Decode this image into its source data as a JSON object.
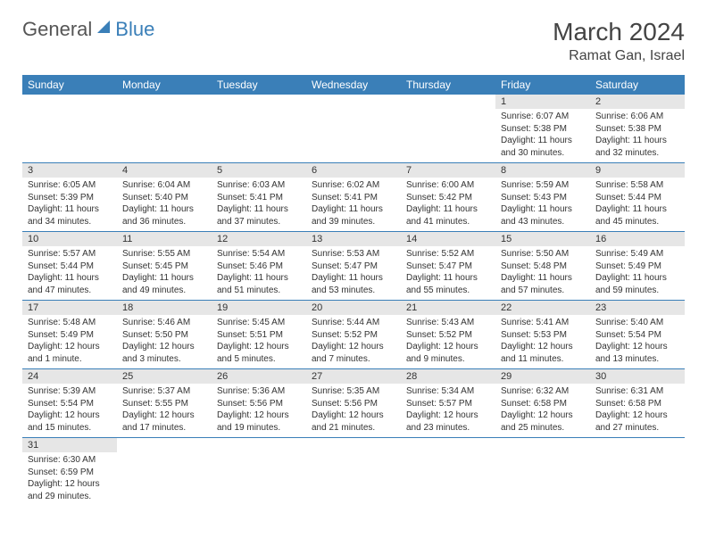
{
  "logo": {
    "general": "General",
    "blue": "Blue"
  },
  "title": "March 2024",
  "location": "Ramat Gan, Israel",
  "colors": {
    "header_bg": "#3a7fb8",
    "header_text": "#ffffff",
    "daynum_bg": "#e6e6e6",
    "body_text": "#333333",
    "border": "#3a7fb8"
  },
  "day_headers": [
    "Sunday",
    "Monday",
    "Tuesday",
    "Wednesday",
    "Thursday",
    "Friday",
    "Saturday"
  ],
  "weeks": [
    [
      null,
      null,
      null,
      null,
      null,
      {
        "n": "1",
        "sr": "6:07 AM",
        "ss": "5:38 PM",
        "dl": "11 hours and 30 minutes."
      },
      {
        "n": "2",
        "sr": "6:06 AM",
        "ss": "5:38 PM",
        "dl": "11 hours and 32 minutes."
      }
    ],
    [
      {
        "n": "3",
        "sr": "6:05 AM",
        "ss": "5:39 PM",
        "dl": "11 hours and 34 minutes."
      },
      {
        "n": "4",
        "sr": "6:04 AM",
        "ss": "5:40 PM",
        "dl": "11 hours and 36 minutes."
      },
      {
        "n": "5",
        "sr": "6:03 AM",
        "ss": "5:41 PM",
        "dl": "11 hours and 37 minutes."
      },
      {
        "n": "6",
        "sr": "6:02 AM",
        "ss": "5:41 PM",
        "dl": "11 hours and 39 minutes."
      },
      {
        "n": "7",
        "sr": "6:00 AM",
        "ss": "5:42 PM",
        "dl": "11 hours and 41 minutes."
      },
      {
        "n": "8",
        "sr": "5:59 AM",
        "ss": "5:43 PM",
        "dl": "11 hours and 43 minutes."
      },
      {
        "n": "9",
        "sr": "5:58 AM",
        "ss": "5:44 PM",
        "dl": "11 hours and 45 minutes."
      }
    ],
    [
      {
        "n": "10",
        "sr": "5:57 AM",
        "ss": "5:44 PM",
        "dl": "11 hours and 47 minutes."
      },
      {
        "n": "11",
        "sr": "5:55 AM",
        "ss": "5:45 PM",
        "dl": "11 hours and 49 minutes."
      },
      {
        "n": "12",
        "sr": "5:54 AM",
        "ss": "5:46 PM",
        "dl": "11 hours and 51 minutes."
      },
      {
        "n": "13",
        "sr": "5:53 AM",
        "ss": "5:47 PM",
        "dl": "11 hours and 53 minutes."
      },
      {
        "n": "14",
        "sr": "5:52 AM",
        "ss": "5:47 PM",
        "dl": "11 hours and 55 minutes."
      },
      {
        "n": "15",
        "sr": "5:50 AM",
        "ss": "5:48 PM",
        "dl": "11 hours and 57 minutes."
      },
      {
        "n": "16",
        "sr": "5:49 AM",
        "ss": "5:49 PM",
        "dl": "11 hours and 59 minutes."
      }
    ],
    [
      {
        "n": "17",
        "sr": "5:48 AM",
        "ss": "5:49 PM",
        "dl": "12 hours and 1 minute."
      },
      {
        "n": "18",
        "sr": "5:46 AM",
        "ss": "5:50 PM",
        "dl": "12 hours and 3 minutes."
      },
      {
        "n": "19",
        "sr": "5:45 AM",
        "ss": "5:51 PM",
        "dl": "12 hours and 5 minutes."
      },
      {
        "n": "20",
        "sr": "5:44 AM",
        "ss": "5:52 PM",
        "dl": "12 hours and 7 minutes."
      },
      {
        "n": "21",
        "sr": "5:43 AM",
        "ss": "5:52 PM",
        "dl": "12 hours and 9 minutes."
      },
      {
        "n": "22",
        "sr": "5:41 AM",
        "ss": "5:53 PM",
        "dl": "12 hours and 11 minutes."
      },
      {
        "n": "23",
        "sr": "5:40 AM",
        "ss": "5:54 PM",
        "dl": "12 hours and 13 minutes."
      }
    ],
    [
      {
        "n": "24",
        "sr": "5:39 AM",
        "ss": "5:54 PM",
        "dl": "12 hours and 15 minutes."
      },
      {
        "n": "25",
        "sr": "5:37 AM",
        "ss": "5:55 PM",
        "dl": "12 hours and 17 minutes."
      },
      {
        "n": "26",
        "sr": "5:36 AM",
        "ss": "5:56 PM",
        "dl": "12 hours and 19 minutes."
      },
      {
        "n": "27",
        "sr": "5:35 AM",
        "ss": "5:56 PM",
        "dl": "12 hours and 21 minutes."
      },
      {
        "n": "28",
        "sr": "5:34 AM",
        "ss": "5:57 PM",
        "dl": "12 hours and 23 minutes."
      },
      {
        "n": "29",
        "sr": "6:32 AM",
        "ss": "6:58 PM",
        "dl": "12 hours and 25 minutes."
      },
      {
        "n": "30",
        "sr": "6:31 AM",
        "ss": "6:58 PM",
        "dl": "12 hours and 27 minutes."
      }
    ],
    [
      {
        "n": "31",
        "sr": "6:30 AM",
        "ss": "6:59 PM",
        "dl": "12 hours and 29 minutes."
      },
      null,
      null,
      null,
      null,
      null,
      null
    ]
  ],
  "labels": {
    "sunrise": "Sunrise: ",
    "sunset": "Sunset: ",
    "daylight": "Daylight: "
  }
}
